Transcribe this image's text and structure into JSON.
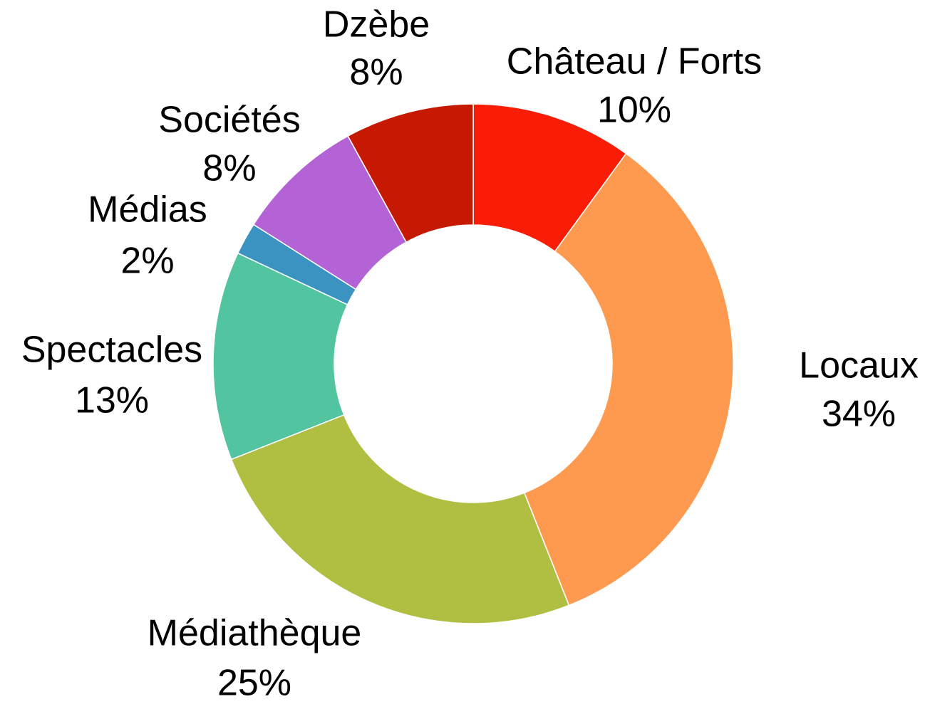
{
  "chart_data": {
    "type": "donut",
    "categories": [
      "Château / Forts",
      "Locaux",
      "Médiathèque",
      "Spectacles",
      "Médias",
      "Sociétés",
      "Dzèbe"
    ],
    "values": [
      10,
      34,
      25,
      13,
      2,
      8,
      8
    ],
    "value_labels": [
      "10%",
      "34%",
      "25%",
      "13%",
      "2%",
      "8%",
      "8%"
    ],
    "colors": [
      "#f91d05",
      "#fe9a50",
      "#b0bf42",
      "#52c5a0",
      "#3b93c2",
      "#b363d6",
      "#c51a01"
    ]
  }
}
